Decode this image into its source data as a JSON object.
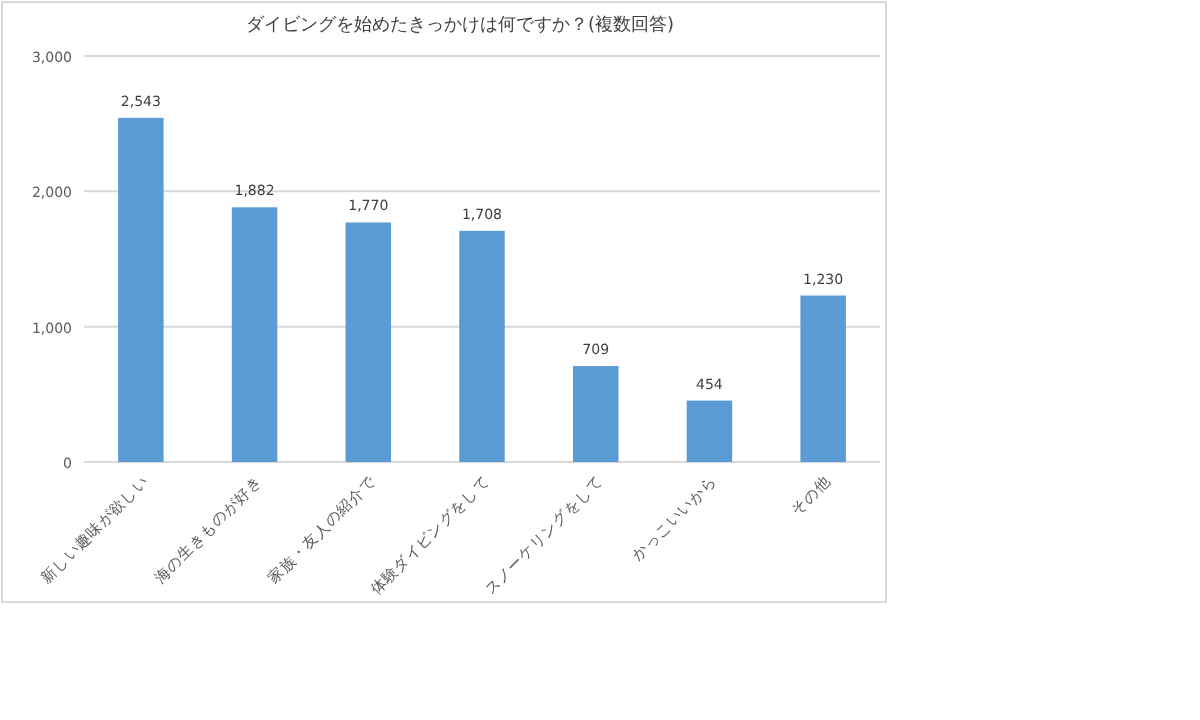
{
  "chart_data": {
    "type": "bar",
    "title": "ダイビングを始めたきっかけは何ですか？(複数回答)",
    "categories": [
      "新しい趣味が欲しい",
      "海の生きものが好き",
      "家族・友人の紹介で",
      "体験ダイビングをして",
      "スノーケリングをして",
      "かっこいいから",
      "その他"
    ],
    "values": [
      2543,
      1882,
      1770,
      1708,
      709,
      454,
      1230
    ],
    "color": "#5b9bd5",
    "ylim": [
      0,
      3000
    ],
    "yticks": [
      {
        "value": 0,
        "label": "0"
      },
      {
        "value": 1000,
        "label": "1,000"
      },
      {
        "value": 2000,
        "label": "2,000"
      },
      {
        "value": 3000,
        "label": "3,000"
      }
    ],
    "grid": "y",
    "value_labels": [
      "2,543",
      "1,882",
      "1,770",
      "1,708",
      "709",
      "454",
      "1,230"
    ]
  }
}
